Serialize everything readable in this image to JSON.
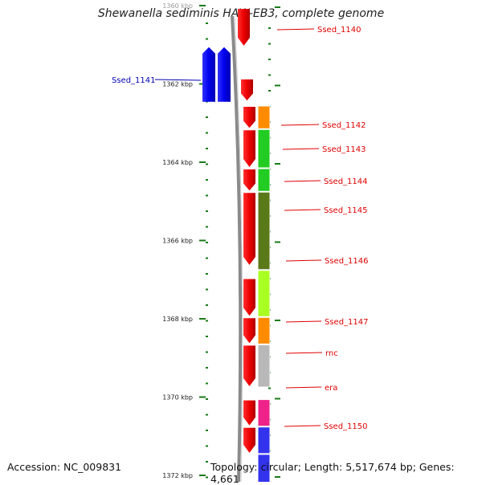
{
  "title": "Shewanella sediminis HAW-EB3, complete genome",
  "footer": {
    "accession": "Accession: NC_009831",
    "topology": "Topology: circular; Length: 5,517,674 bp; Genes: 4,661"
  },
  "scale": {
    "unit": "kbp",
    "ticks": [
      {
        "label": "1360 kbp",
        "kbp": 1360,
        "faded": true
      },
      {
        "label": "1362 kbp",
        "kbp": 1362
      },
      {
        "label": "1364 kbp",
        "kbp": 1364
      },
      {
        "label": "1366 kbp",
        "kbp": 1366
      },
      {
        "label": "1368 kbp",
        "kbp": 1368
      },
      {
        "label": "1370 kbp",
        "kbp": 1370
      },
      {
        "label": "1372 kbp",
        "kbp": 1372
      }
    ]
  },
  "gene_labels": [
    {
      "text": "Ssed_1140",
      "color": "#e00000"
    },
    {
      "text": "Ssed_1141",
      "color": "#0000b0"
    },
    {
      "text": "Ssed_1142",
      "color": "#e00000"
    },
    {
      "text": "Ssed_1143",
      "color": "#e00000"
    },
    {
      "text": "Ssed_1144",
      "color": "#e00000"
    },
    {
      "text": "Ssed_1145",
      "color": "#e00000"
    },
    {
      "text": "Ssed_1146",
      "color": "#e00000"
    },
    {
      "text": "Ssed_1147",
      "color": "#e00000"
    },
    {
      "text": "rnc",
      "color": "#e00000"
    },
    {
      "text": "era",
      "color": "#e00000"
    },
    {
      "text": "Ssed_1150",
      "color": "#e00000"
    }
  ],
  "legend_colors": {
    "forward_strand": "#ee0000",
    "reverse_strand": "#0000ee",
    "backbone": "#8a8a8a",
    "tick": "#1a7a1a"
  },
  "cog_colors": [
    "#ff8c00",
    "#22cc22",
    "#22cc22",
    "#22cc22",
    "#5a7a1a",
    "#aaff22",
    "#ff8c00",
    "#b8b8b8",
    "#ee2288",
    "#3333ee"
  ]
}
